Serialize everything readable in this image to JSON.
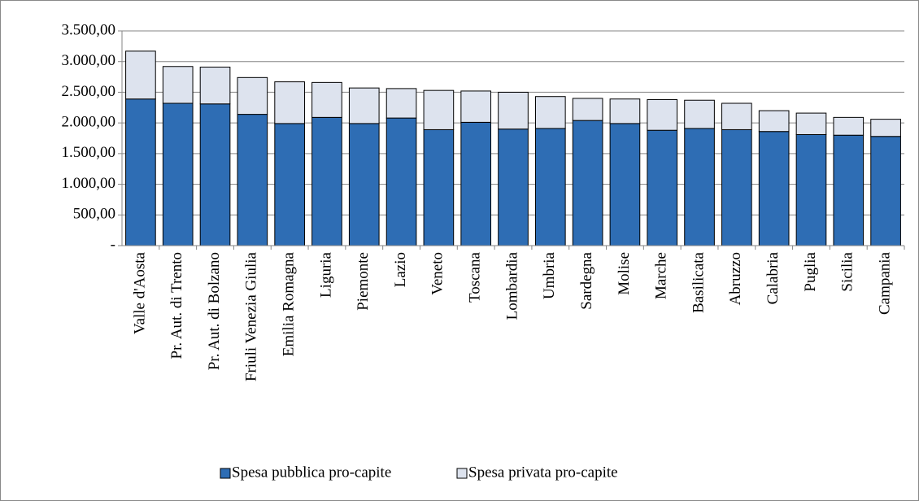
{
  "chart_data": {
    "type": "stacked_bar",
    "categories": [
      "Valle d'Aosta",
      "Pr. Aut. di Trento",
      "Pr. Aut. di Bolzano",
      "Friuli Venezia Giulia",
      "Emilia Romagna",
      "Liguria",
      "Piemonte",
      "Lazio",
      "Veneto",
      "Toscana",
      "Lombardia",
      "Umbria",
      "Sardegna",
      "Molise",
      "Marche",
      "Basilicata",
      "Abruzzo",
      "Calabria",
      "Puglia",
      "Sicilia",
      "Campania"
    ],
    "series": [
      {
        "name": "Spesa pubblica pro-capite",
        "color": "#2e6db4",
        "values": [
          2390,
          2320,
          2310,
          2140,
          1990,
          2090,
          1990,
          2080,
          1890,
          2010,
          1900,
          1910,
          2040,
          1990,
          1880,
          1910,
          1890,
          1860,
          1810,
          1800,
          1780
        ]
      },
      {
        "name": "Spesa privata pro-capite",
        "color": "#dde3ee",
        "values": [
          780,
          600,
          600,
          600,
          680,
          570,
          580,
          480,
          640,
          510,
          600,
          520,
          360,
          400,
          500,
          460,
          430,
          340,
          350,
          290,
          280
        ]
      }
    ],
    "ylim": [
      0,
      3500
    ],
    "yticks": [
      {
        "value": 0,
        "label": "-"
      },
      {
        "value": 500,
        "label": "500,00"
      },
      {
        "value": 1000,
        "label": "1.000,00"
      },
      {
        "value": 1500,
        "label": "1.500,00"
      },
      {
        "value": 2000,
        "label": "2.000,00"
      },
      {
        "value": 2500,
        "label": "2.500,00"
      },
      {
        "value": 3000,
        "label": "3.000,00"
      },
      {
        "value": 3500,
        "label": "3.500,00"
      }
    ],
    "grid": true,
    "legend": "bottom"
  }
}
